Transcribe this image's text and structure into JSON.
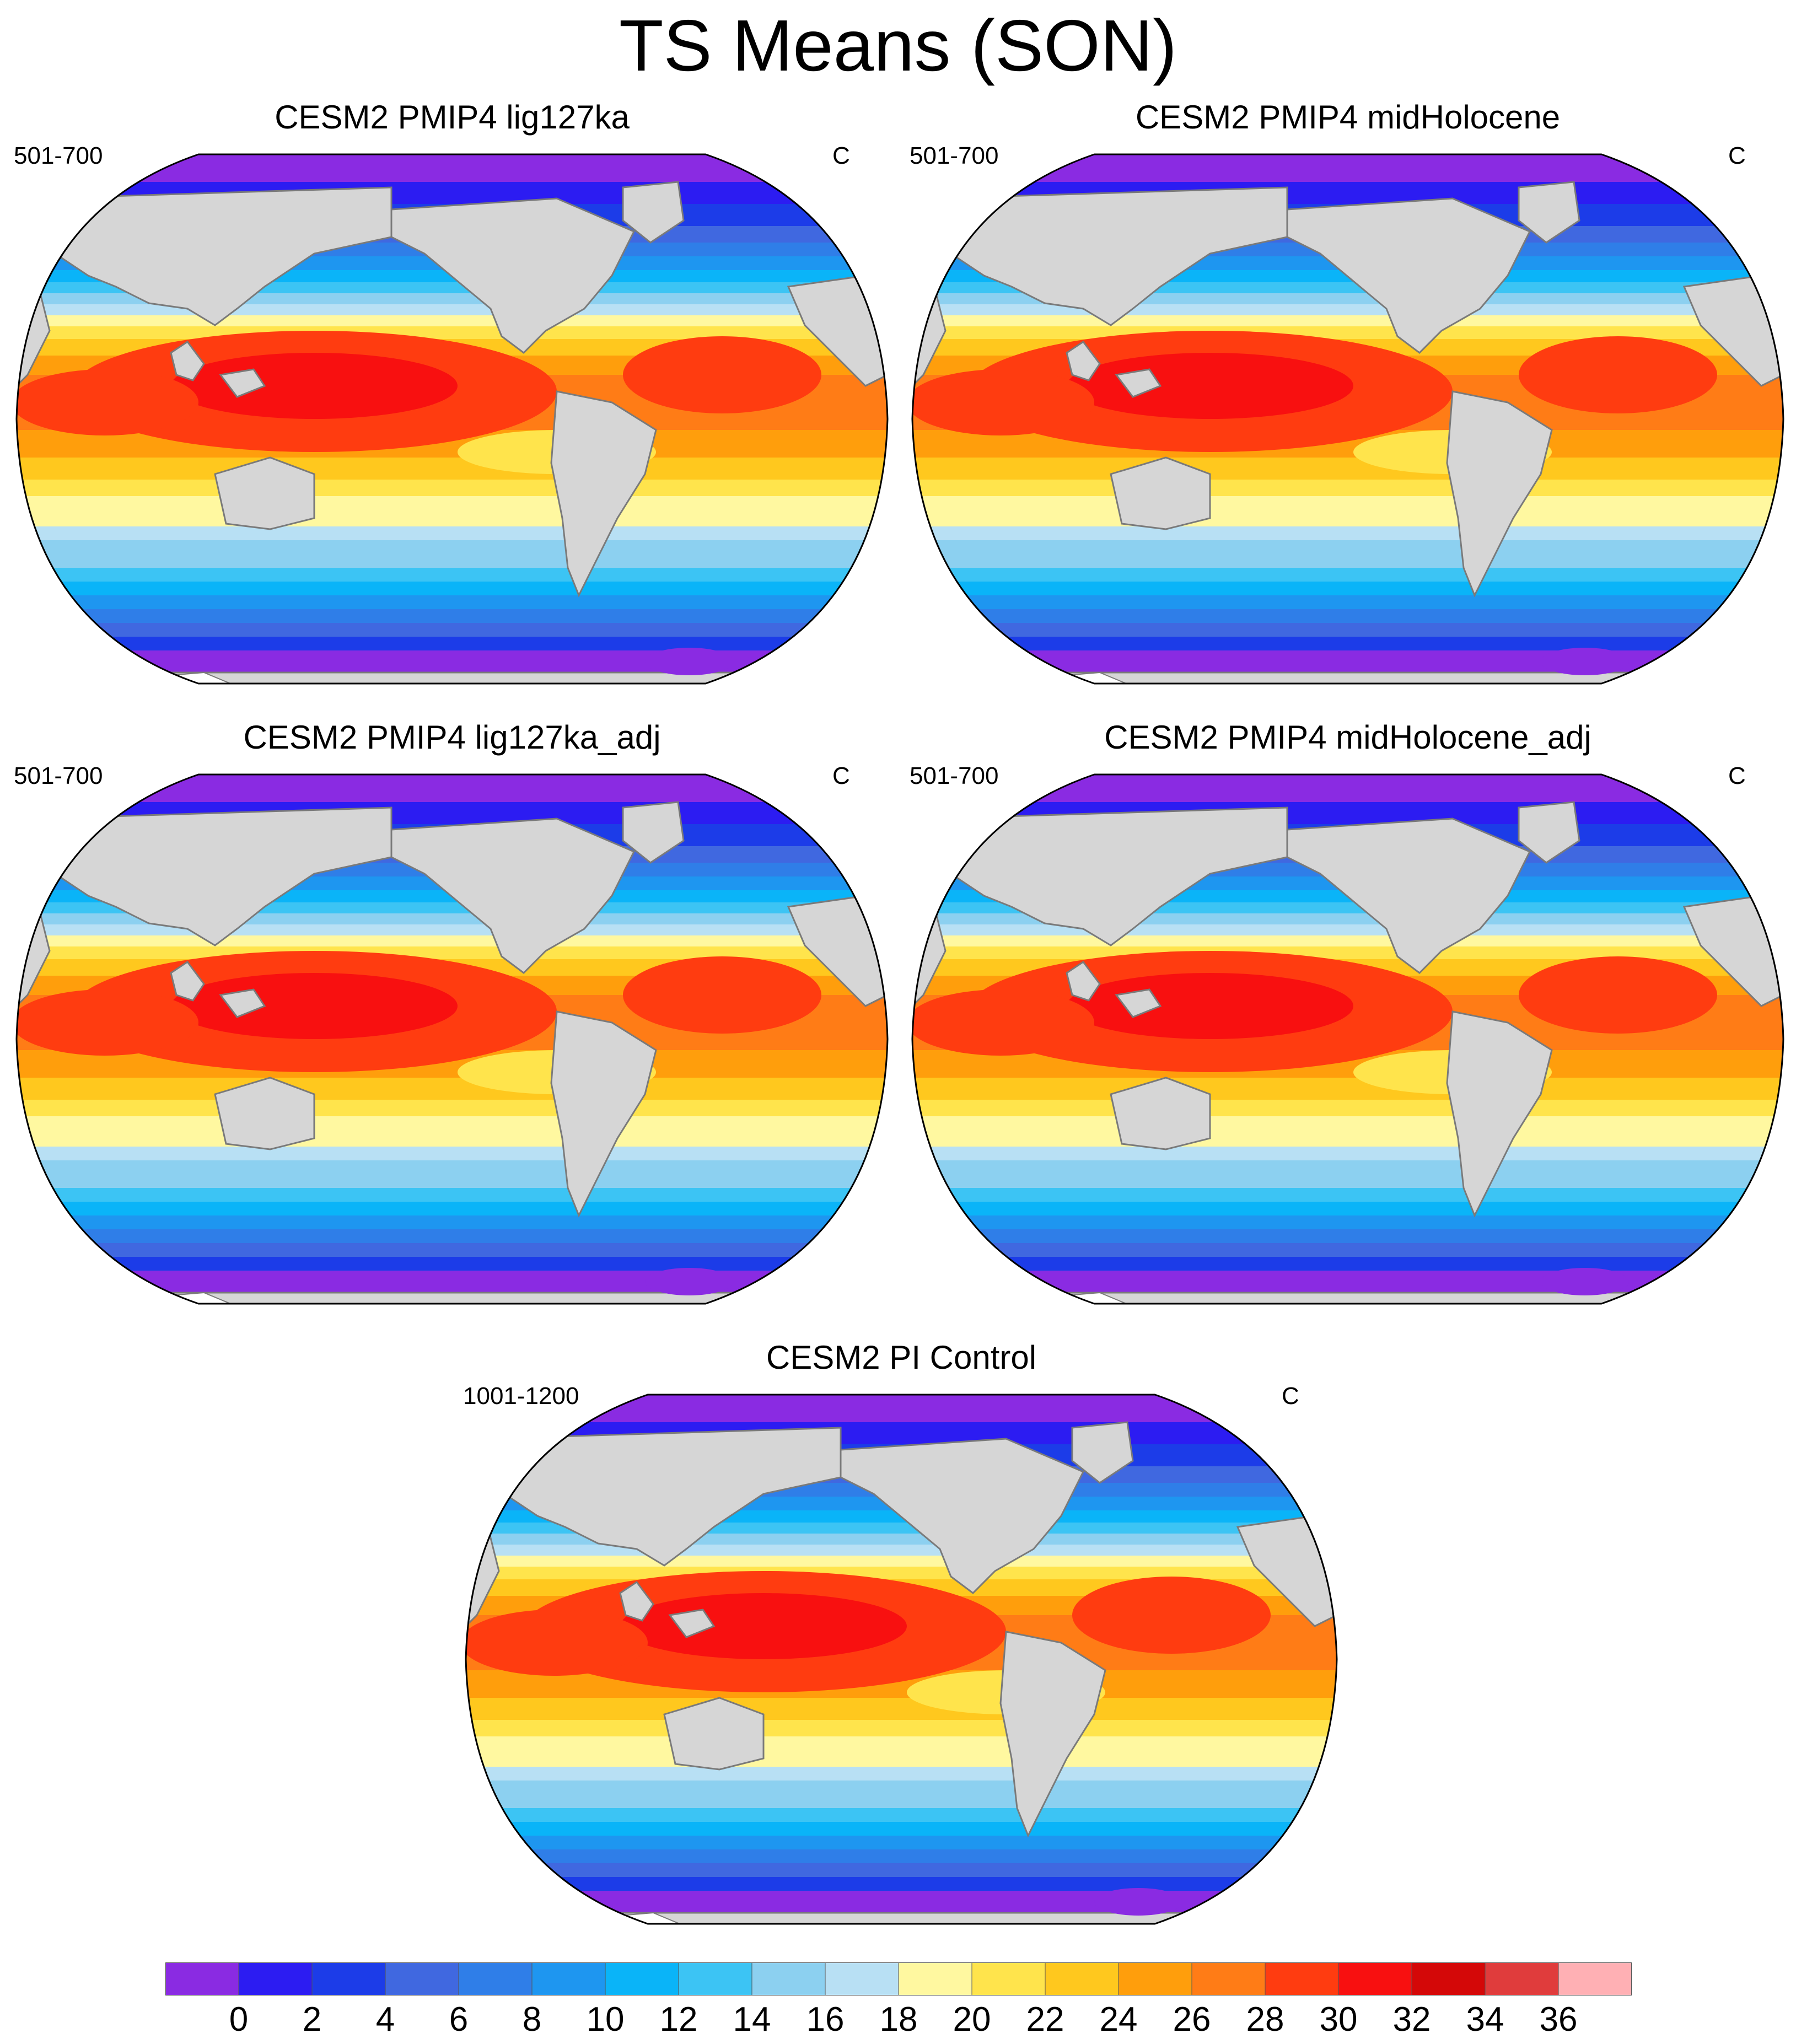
{
  "title": "TS Means (SON)",
  "panels": [
    {
      "title": "CESM2 PMIP4 lig127ka",
      "years": "501-700",
      "units": "C"
    },
    {
      "title": "CESM2 PMIP4 midHolocene",
      "years": "501-700",
      "units": "C"
    },
    {
      "title": "CESM2 PMIP4 lig127ka_adj",
      "years": "501-700",
      "units": "C"
    },
    {
      "title": "CESM2 PMIP4 midHolocene_adj",
      "years": "501-700",
      "units": "C"
    },
    {
      "title": "CESM2 PI Control",
      "years": "1001-1200",
      "units": "C"
    }
  ],
  "colorbar": {
    "ticks": [
      "0",
      "2",
      "4",
      "6",
      "8",
      "10",
      "12",
      "14",
      "16",
      "18",
      "20",
      "22",
      "24",
      "26",
      "28",
      "30",
      "32",
      "34",
      "36"
    ],
    "colors": [
      "#8a2be2",
      "#2c1cf2",
      "#1c3ce8",
      "#4068e0",
      "#2f7ee8",
      "#1e96f0",
      "#0ab4f8",
      "#3cc4f4",
      "#8cd0f0",
      "#b8e0f4",
      "#fff8a0",
      "#ffe44c",
      "#ffc81e",
      "#ff9e0c",
      "#ff7c16",
      "#ff3c10",
      "#f81010",
      "#d40808",
      "#e03c3c",
      "#ffb0b4"
    ]
  },
  "map_style": {
    "land": "#d6d6d6",
    "coast": "#7a7a7a",
    "ice": "#ffffff"
  }
}
